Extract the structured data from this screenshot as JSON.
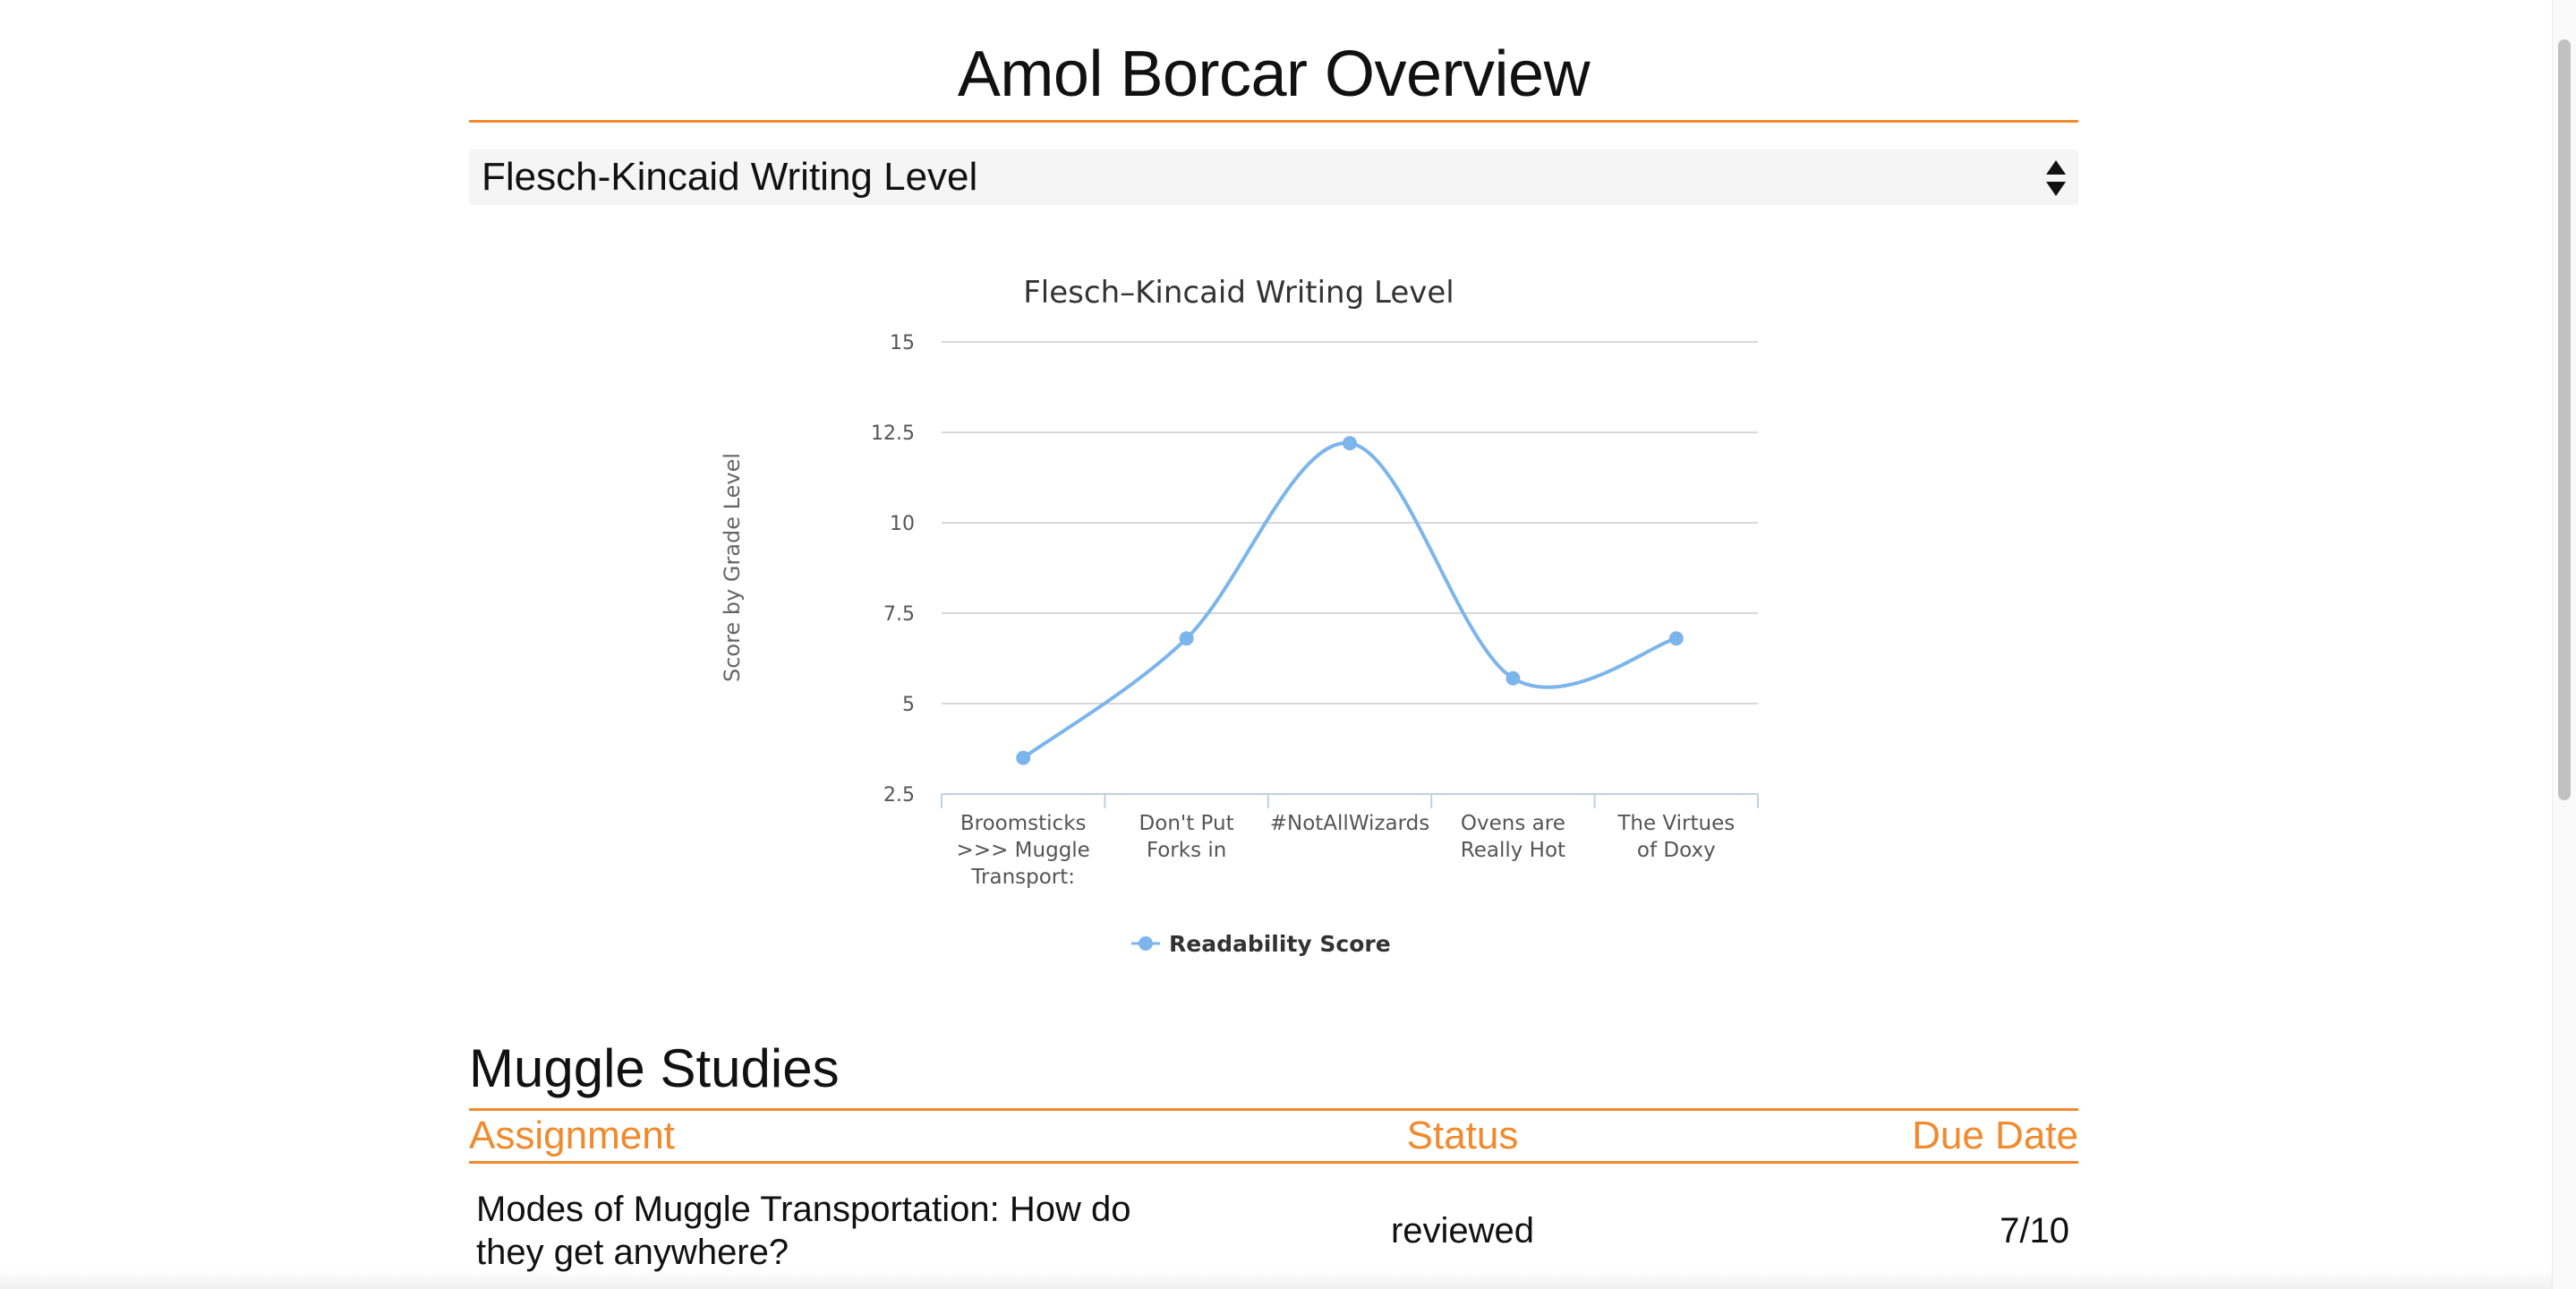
{
  "page": {
    "title": "Amol Borcar Overview"
  },
  "metric_select": {
    "selected": "Flesch-Kincaid Writing Level"
  },
  "chart": {
    "title": "Flesch–Kincaid Writing Level",
    "ylabel": "Score by Grade Level",
    "legend_label": "Readability Score",
    "y_ticks": [
      "15",
      "12.5",
      "10",
      "7.5",
      "5",
      "2.5"
    ],
    "x_labels": [
      [
        "Broomsticks",
        ">>> Muggle",
        "Transport:"
      ],
      [
        "Don't Put",
        "Forks in"
      ],
      [
        "#NotAllWizards"
      ],
      [
        "Ovens are",
        "Really Hot"
      ],
      [
        "The Virtues",
        "of Doxy"
      ]
    ],
    "series_color": "#7cb5ec"
  },
  "chart_data": {
    "type": "line",
    "title": "Flesch–Kincaid Writing Level",
    "xlabel": "",
    "ylabel": "Score by Grade Level",
    "categories": [
      "Broomsticks >>> Muggle Transport:",
      "Don't Put Forks in",
      "#NotAllWizards",
      "Ovens are Really Hot",
      "The Virtues of Doxy"
    ],
    "series": [
      {
        "name": "Readability Score",
        "values": [
          3.5,
          6.8,
          12.2,
          5.7,
          6.8
        ]
      }
    ],
    "ylim": [
      2.5,
      15
    ],
    "yticks": [
      2.5,
      5,
      7.5,
      10,
      12.5,
      15
    ],
    "smooth": true,
    "grid": true,
    "legend": "bottom-center"
  },
  "section": {
    "title": "Muggle Studies",
    "columns": {
      "assignment": "Assignment",
      "status": "Status",
      "due": "Due Date"
    },
    "rows": [
      {
        "assignment": "Modes of Muggle Transportation: How do they get anywhere?",
        "status": "reviewed",
        "due": "7/10"
      }
    ]
  },
  "colors": {
    "accent": "#f08a2c",
    "series": "#7cb5ec"
  }
}
